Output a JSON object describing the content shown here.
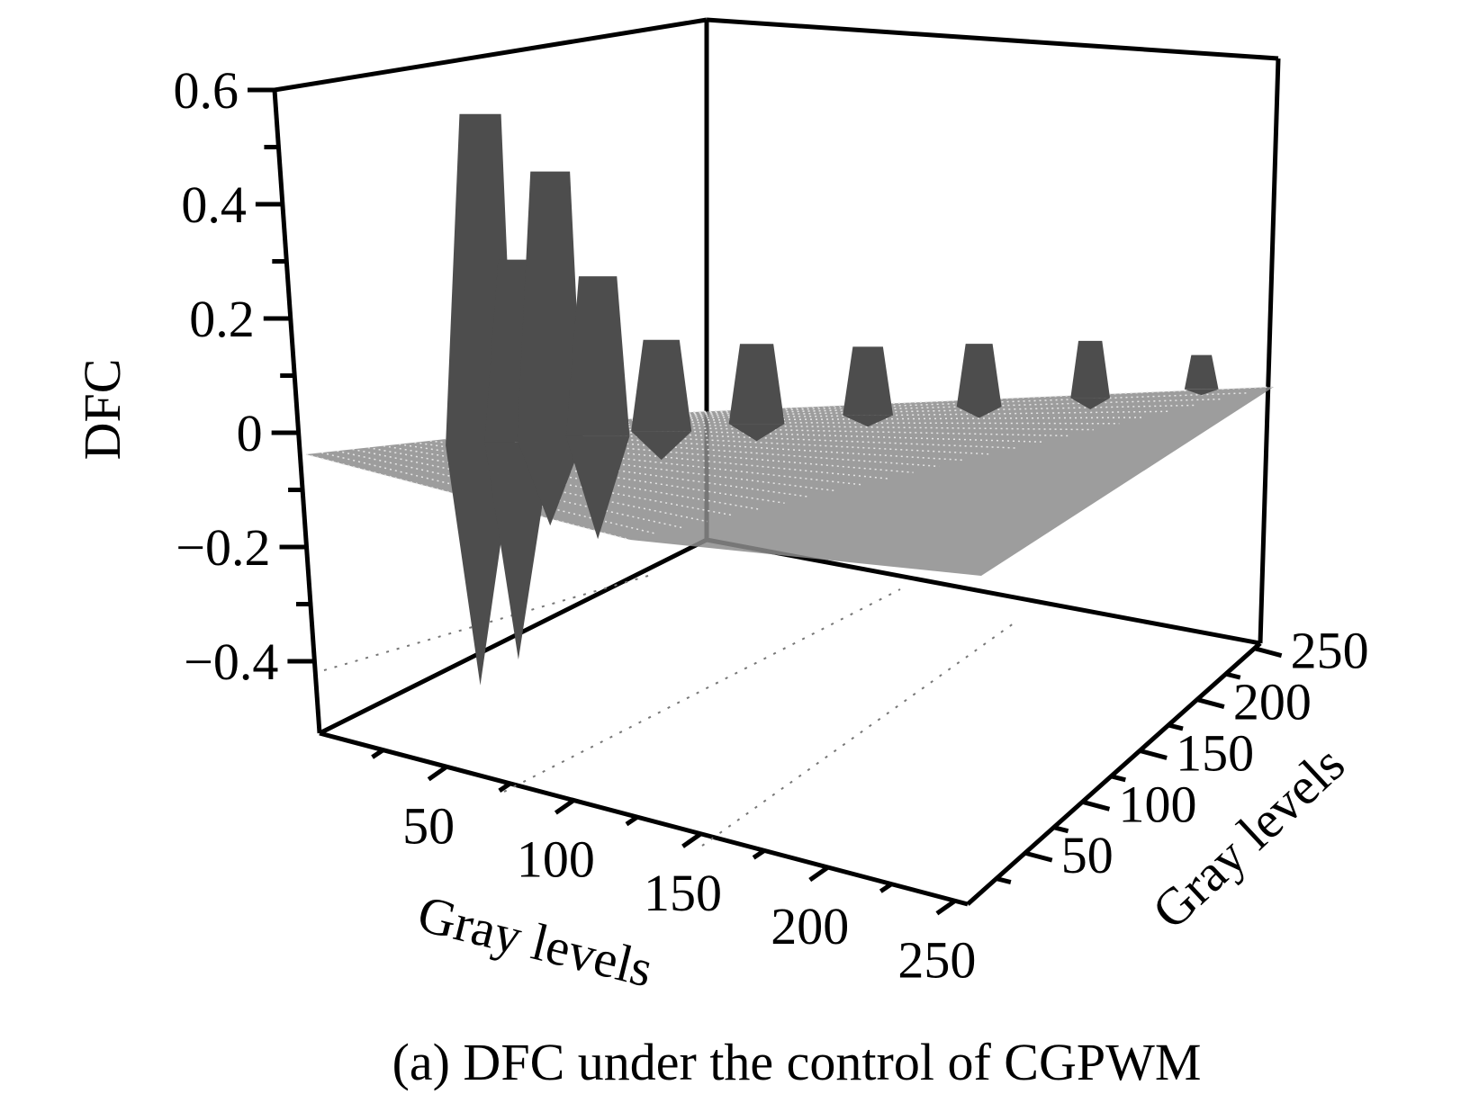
{
  "caption": "(a) DFC under the control of CGPWM",
  "chart_data": {
    "type": "surface",
    "title": "",
    "zlabel": "DFC",
    "xlabel": "Gray levels",
    "ylabel": "Gray levels",
    "zlim": [
      -0.4,
      0.6
    ],
    "xlim": [
      0,
      255
    ],
    "ylim": [
      0,
      255
    ],
    "z_ticks": [
      "0.6",
      "0.4",
      "0.2",
      "0",
      "−0.2",
      "−0.4"
    ],
    "x_ticks": [
      "50",
      "100",
      "150",
      "200",
      "250"
    ],
    "y_ticks": [
      "50",
      "100",
      "150",
      "200",
      "250"
    ],
    "ridges": [
      {
        "x": 18,
        "peak": 0.58,
        "trough": -0.42
      },
      {
        "x": 30,
        "peak": 0.32,
        "trough": -0.38
      },
      {
        "x": 40,
        "peak": 0.47,
        "trough": -0.15
      },
      {
        "x": 55,
        "peak": 0.28,
        "trough": -0.18
      },
      {
        "x": 75,
        "peak": 0.16,
        "trough": -0.05
      },
      {
        "x": 105,
        "peak": 0.14,
        "trough": -0.03
      },
      {
        "x": 140,
        "peak": 0.12,
        "trough": -0.02
      },
      {
        "x": 175,
        "peak": 0.11,
        "trough": -0.02
      },
      {
        "x": 210,
        "peak": 0.1,
        "trough": -0.02
      },
      {
        "x": 245,
        "peak": 0.06,
        "trough": -0.01
      }
    ],
    "grid": false,
    "colors": {
      "surface": "#4d4d4d",
      "axes": "#000000"
    }
  }
}
